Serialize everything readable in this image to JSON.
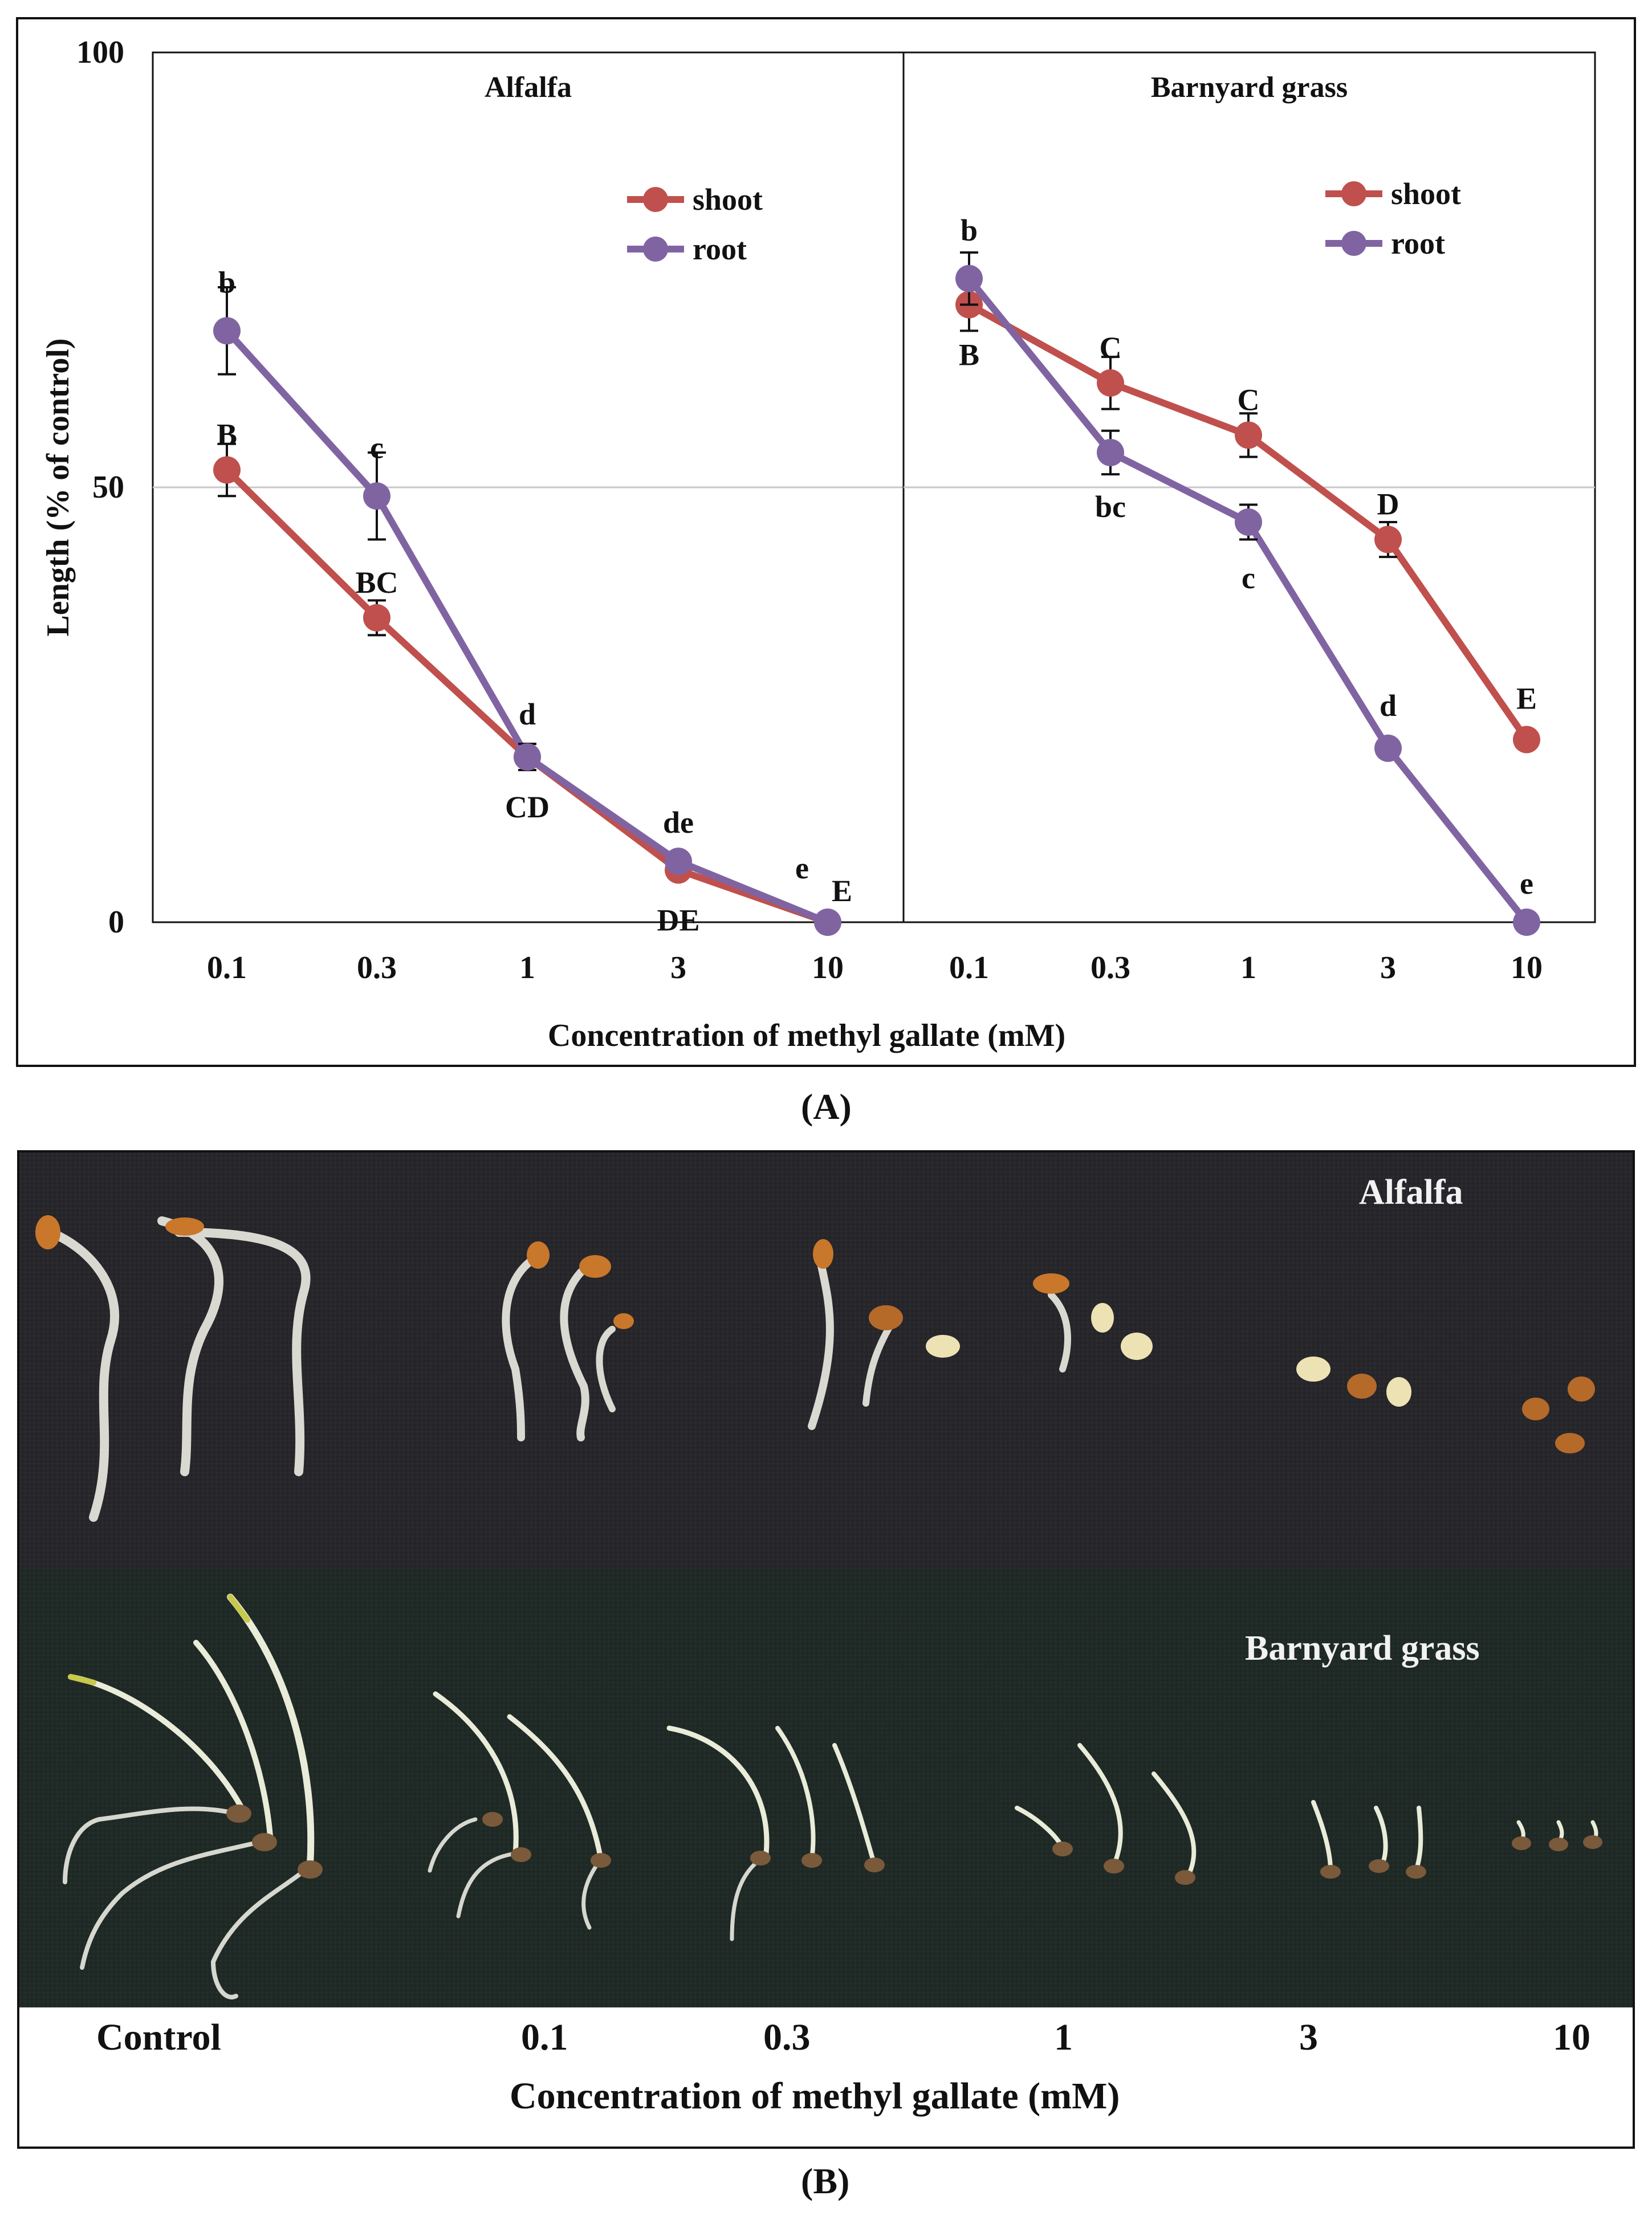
{
  "panel_a_label": "(A)",
  "panel_b_label": "(B)",
  "chart_data": [
    {
      "type": "line",
      "title": "Alfalfa",
      "xlabel": "Concentration  of methyl gallate (mM)",
      "ylabel": "Length (% of control)",
      "categories": [
        "0.1",
        "0.3",
        "1",
        "3",
        "10"
      ],
      "ylim": [
        0,
        100
      ],
      "yticks": [
        "0",
        "50",
        "100"
      ],
      "gridlines": [
        50
      ],
      "legend_position": "top-right",
      "series": [
        {
          "name": "shoot",
          "color": "#c0504d",
          "values": [
            52,
            35,
            19,
            6,
            0
          ],
          "errors": [
            3,
            2,
            1.5,
            1,
            0
          ],
          "letters": [
            "B",
            "BC",
            "CD",
            "DE",
            "E"
          ]
        },
        {
          "name": "root",
          "color": "#8064a2",
          "values": [
            68,
            49,
            19,
            7,
            0
          ],
          "errors": [
            5,
            5,
            1.5,
            1,
            0
          ],
          "letters": [
            "b",
            "c",
            "d",
            "de",
            "e"
          ]
        }
      ]
    },
    {
      "type": "line",
      "title": "Barnyard  grass",
      "xlabel": "Concentration  of methyl gallate (mM)",
      "ylabel": "Length (% of control)",
      "categories": [
        "0.1",
        "0.3",
        "1",
        "3",
        "10"
      ],
      "ylim": [
        0,
        100
      ],
      "gridlines": [
        50
      ],
      "legend_position": "top-right",
      "series": [
        {
          "name": "shoot",
          "color": "#c0504d",
          "values": [
            71,
            62,
            56,
            44,
            21
          ],
          "errors": [
            3,
            3,
            2.5,
            2,
            0
          ],
          "letters": [
            "B",
            "C",
            "C",
            "D",
            "E"
          ]
        },
        {
          "name": "root",
          "color": "#8064a2",
          "values": [
            74,
            54,
            46,
            20,
            0
          ],
          "errors": [
            3,
            2.5,
            2,
            0,
            0
          ],
          "letters": [
            "b",
            "bc",
            "c",
            "d",
            "e"
          ]
        }
      ]
    }
  ],
  "photo": {
    "top_label": "Alfalfa",
    "bottom_label": "Barnyard grass",
    "x_labels": [
      "Control",
      "0.1",
      "0.3",
      "1",
      "3",
      "10"
    ],
    "xlabel": "Concentration of methyl gallate (mM)"
  },
  "colors": {
    "shoot": "#c0504d",
    "root": "#8064a2",
    "photo_top_bg": "#26262b",
    "photo_bottom_bg": "#1f2a26"
  }
}
